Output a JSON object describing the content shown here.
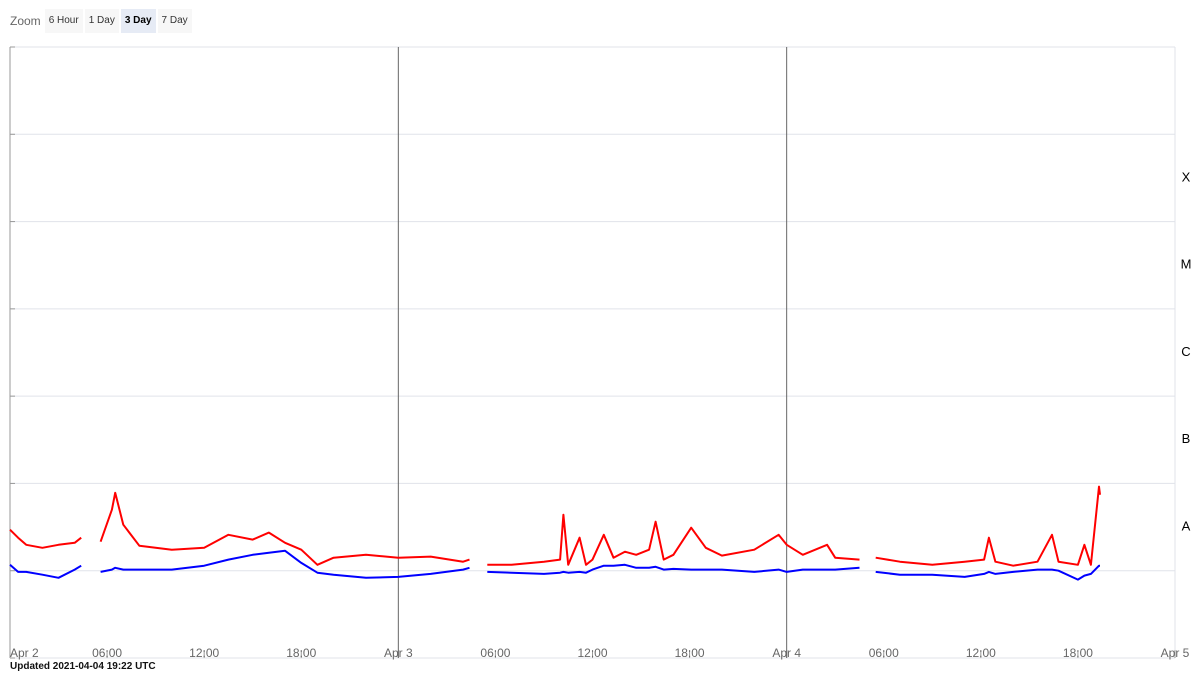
{
  "zoom": {
    "label": "Zoom",
    "options": [
      "6 Hour",
      "1 Day",
      "3 Day",
      "7 Day"
    ],
    "active": 2
  },
  "footer": "Updated 2021-04-04 19:22 UTC",
  "chart_data": {
    "type": "line",
    "log_scale": true,
    "grid": true,
    "ylim": [
      1e-09,
      0.01
    ],
    "yticks": [
      1e-09,
      1e-08,
      1e-07,
      1e-06,
      1e-05,
      0.0001,
      0.001,
      0.01
    ],
    "class_labels": [
      {
        "value": 1e-08,
        "label": "A"
      },
      {
        "value": 1e-07,
        "label": "B"
      },
      {
        "value": 1e-06,
        "label": "C"
      },
      {
        "value": 1e-05,
        "label": "M"
      },
      {
        "value": 0.0001,
        "label": "X"
      }
    ],
    "xlim": [
      "Apr 2 00:00",
      "Apr 5 00:00"
    ],
    "xticks": [
      {
        "value": "Apr 2 00:00",
        "label": "Apr 2"
      },
      {
        "value": "Apr 2 06:00",
        "label": "06:00"
      },
      {
        "value": "Apr 2 12:00",
        "label": "12:00"
      },
      {
        "value": "Apr 2 18:00",
        "label": "18:00"
      },
      {
        "value": "Apr 3 00:00",
        "label": "Apr 3"
      },
      {
        "value": "Apr 3 06:00",
        "label": "06:00"
      },
      {
        "value": "Apr 3 12:00",
        "label": "12:00"
      },
      {
        "value": "Apr 3 18:00",
        "label": "18:00"
      },
      {
        "value": "Apr 4 00:00",
        "label": "Apr 4"
      },
      {
        "value": "Apr 4 06:00",
        "label": "06:00"
      },
      {
        "value": "Apr 4 12:00",
        "label": "12:00"
      },
      {
        "value": "Apr 4 18:00",
        "label": "18:00"
      },
      {
        "value": "Apr 5 00:00",
        "label": "Apr 5"
      }
    ],
    "x": [
      "Apr 2 00:00",
      "Apr 2 00:30",
      "Apr 2 01:00",
      "Apr 2 02:00",
      "Apr 2 03:00",
      "Apr 2 04:00",
      "Apr 2 04:24",
      "Apr 2 05:00",
      "Apr 2 05:36",
      "Apr 2 06:18",
      "Apr 2 06:30",
      "Apr 2 07:00",
      "Apr 2 08:00",
      "Apr 2 10:00",
      "Apr 2 12:00",
      "Apr 2 13:30",
      "Apr 2 15:00",
      "Apr 2 16:00",
      "Apr 2 17:00",
      "Apr 2 18:00",
      "Apr 2 19:00",
      "Apr 2 20:00",
      "Apr 2 22:00",
      "Apr 3 00:00",
      "Apr 3 02:00",
      "Apr 3 04:00",
      "Apr 3 04:24",
      "Apr 3 05:00",
      "Apr 3 05:30",
      "Apr 3 07:00",
      "Apr 3 09:00",
      "Apr 3 10:00",
      "Apr 3 10:12",
      "Apr 3 10:30",
      "Apr 3 11:12",
      "Apr 3 11:36",
      "Apr 3 12:00",
      "Apr 3 12:42",
      "Apr 3 13:18",
      "Apr 3 14:00",
      "Apr 3 14:42",
      "Apr 3 15:30",
      "Apr 3 15:54",
      "Apr 3 16:24",
      "Apr 3 17:00",
      "Apr 3 18:06",
      "Apr 3 19:00",
      "Apr 3 20:00",
      "Apr 3 22:00",
      "Apr 3 23:30",
      "Apr 4 00:00",
      "Apr 4 01:00",
      "Apr 4 02:30",
      "Apr 4 03:00",
      "Apr 4 04:30",
      "Apr 4 05:00",
      "Apr 4 05:30",
      "Apr 4 07:00",
      "Apr 4 09:00",
      "Apr 4 11:00",
      "Apr 4 12:12",
      "Apr 4 12:30",
      "Apr 4 12:54",
      "Apr 4 14:00",
      "Apr 4 15:30",
      "Apr 4 16:24",
      "Apr 4 16:48",
      "Apr 4 18:00",
      "Apr 4 18:24",
      "Apr 4 18:48",
      "Apr 4 19:18",
      "Apr 4 19:22"
    ],
    "series": [
      {
        "color": "#ff0000",
        "values": [
          2.95e-08,
          2.39e-08,
          1.98e-08,
          1.83e-08,
          1.98e-08,
          2.09e-08,
          2.39e-08,
          null,
          2.15e-08,
          5e-08,
          7.8e-08,
          3.37e-08,
          1.93e-08,
          1.74e-08,
          1.83e-08,
          2.58e-08,
          2.27e-08,
          2.73e-08,
          2.09e-08,
          1.74e-08,
          1.17e-08,
          1.41e-08,
          1.52e-08,
          1.41e-08,
          1.45e-08,
          1.27e-08,
          1.34e-08,
          null,
          1.17e-08,
          1.17e-08,
          1.27e-08,
          1.34e-08,
          4.38e-08,
          1.17e-08,
          2.39e-08,
          1.17e-08,
          1.34e-08,
          2.58e-08,
          1.41e-08,
          1.65e-08,
          1.52e-08,
          1.74e-08,
          3.64e-08,
          1.34e-08,
          1.52e-08,
          3.11e-08,
          1.83e-08,
          1.49e-08,
          1.74e-08,
          2.58e-08,
          1.98e-08,
          1.52e-08,
          1.98e-08,
          1.41e-08,
          1.34e-08,
          null,
          1.41e-08,
          1.27e-08,
          1.17e-08,
          1.27e-08,
          1.34e-08,
          2.39e-08,
          1.27e-08,
          1.14e-08,
          1.27e-08,
          2.58e-08,
          1.27e-08,
          1.17e-08,
          1.98e-08,
          1.17e-08,
          9.2e-08,
          7.43e-08
        ]
      },
      {
        "color": "#0000ff",
        "values": [
          1.17e-08,
          9.7e-09,
          9.7e-09,
          9e-09,
          8.3e-09,
          1.03e-08,
          1.14e-08,
          null,
          9.7e-09,
          1.03e-08,
          1.08e-08,
          1.03e-08,
          1.03e-08,
          1.03e-08,
          1.14e-08,
          1.34e-08,
          1.52e-08,
          1.61e-08,
          1.69e-08,
          1.23e-08,
          9.5e-09,
          9e-09,
          8.3e-09,
          8.5e-09,
          9.2e-09,
          1.03e-08,
          1.08e-08,
          null,
          9.7e-09,
          9.5e-09,
          9.2e-09,
          9.5e-09,
          9.7e-09,
          9.5e-09,
          9.7e-09,
          9.5e-09,
          1.03e-08,
          1.14e-08,
          1.14e-08,
          1.17e-08,
          1.08e-08,
          1.08e-08,
          1.11e-08,
          1.03e-08,
          1.05e-08,
          1.03e-08,
          1.03e-08,
          1.03e-08,
          9.7e-09,
          1.03e-08,
          9.7e-09,
          1.03e-08,
          1.03e-08,
          1.03e-08,
          1.08e-08,
          null,
          9.7e-09,
          9e-09,
          9e-09,
          8.5e-09,
          9.2e-09,
          9.7e-09,
          9.2e-09,
          9.7e-09,
          1.03e-08,
          1.03e-08,
          1e-08,
          7.9e-09,
          8.8e-09,
          9.2e-09,
          1.14e-08,
          1.14e-08
        ]
      }
    ]
  }
}
